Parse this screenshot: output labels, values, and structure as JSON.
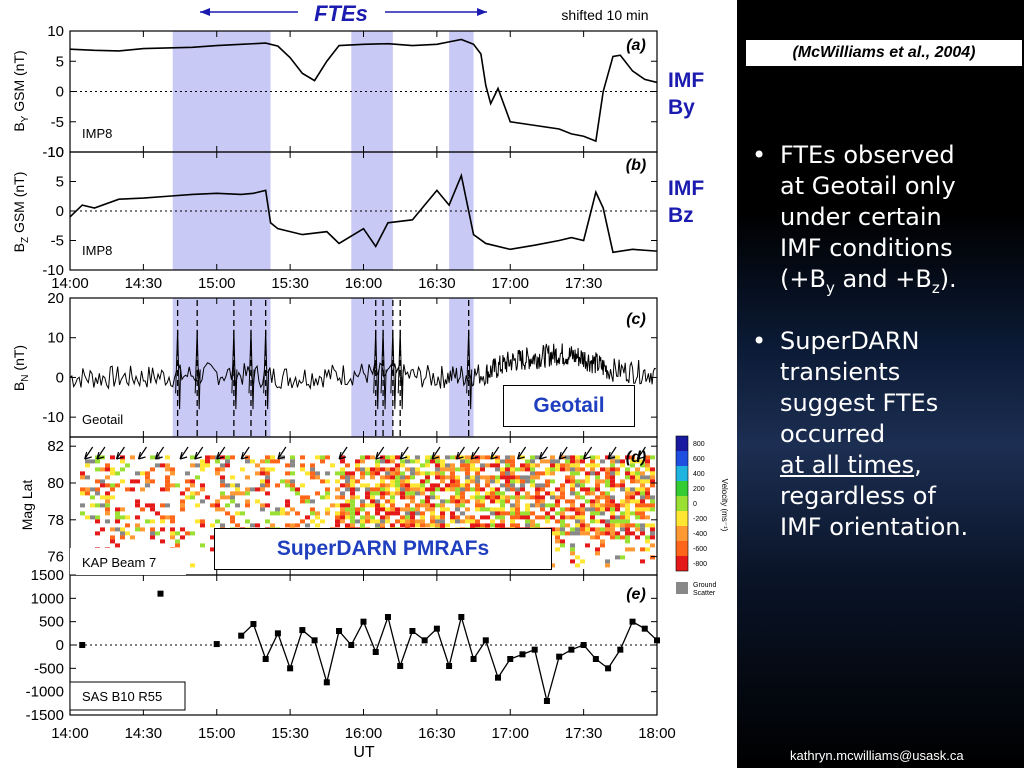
{
  "citation": "(McWilliams et al.,  2004)",
  "header": {
    "ftes": "FTEs",
    "shift_note": "shifted 10 min"
  },
  "side_labels": {
    "imf_by": [
      "IMF",
      "By"
    ],
    "imf_bz": [
      "IMF",
      "Bz"
    ]
  },
  "box_labels": {
    "geotail": "Geotail",
    "superdarn": "SuperDARN PMRAFs"
  },
  "bullets": [
    {
      "lines": [
        "FTEs observed",
        "at Geotail only",
        "under certain",
        "IMF conditions"
      ],
      "math": {
        "pre": "(+B",
        "sub1": "y",
        "mid": " and +B",
        "sub2": "z",
        "post": ")."
      }
    },
    {
      "lines": [
        "SuperDARN",
        "transients",
        "suggest FTEs",
        "occurred"
      ],
      "underline": "at all times",
      "after_underline": ",",
      "tail": [
        "regardless of",
        "IMF orientation."
      ]
    }
  ],
  "email": "kathryn.mcwilliams@usask.ca",
  "colors": {
    "highlight": "#c9c9f5",
    "label_blue": "#1b1bb0",
    "box_blue": "#1f3fbf",
    "trace": "#000000"
  },
  "chart_data": [
    {
      "type": "line",
      "panel": "(a)",
      "label": "IMP8",
      "ylabel": {
        "main": "B",
        "sub": "Y",
        "rest": " GSM (nT)"
      },
      "ylim": [
        -10,
        10
      ],
      "yticks": [
        10,
        5,
        0,
        -5,
        -10
      ],
      "zero_line": true,
      "x": [
        "14:00",
        "14:10",
        "14:20",
        "14:30",
        "14:40",
        "14:50",
        "15:00",
        "15:10",
        "15:20",
        "15:25",
        "15:30",
        "15:35",
        "15:40",
        "15:45",
        "15:50",
        "16:00",
        "16:10",
        "16:20",
        "16:30",
        "16:35",
        "16:40",
        "16:45",
        "16:48",
        "16:50",
        "16:52",
        "16:55",
        "17:00",
        "17:10",
        "17:20",
        "17:25",
        "17:30",
        "17:35",
        "17:38",
        "17:42",
        "17:45",
        "17:50",
        "17:55",
        "18:00"
      ],
      "y": [
        7.0,
        6.8,
        6.7,
        7.1,
        7.2,
        7.3,
        7.6,
        7.8,
        8.0,
        7.5,
        5.6,
        3.0,
        1.8,
        5.0,
        7.6,
        7.8,
        7.9,
        7.6,
        7.8,
        8.2,
        8.6,
        7.8,
        6.2,
        1.0,
        -2.0,
        0.5,
        -5.0,
        -5.6,
        -6.2,
        -7.0,
        -7.4,
        -8.2,
        0.0,
        5.8,
        6.0,
        3.4,
        2.0,
        1.5
      ],
      "xticks": [
        "14:00",
        "14:30",
        "15:00",
        "15:30",
        "16:00",
        "16:30",
        "17:00",
        "17:30"
      ]
    },
    {
      "type": "line",
      "panel": "(b)",
      "label": "IMP8",
      "ylabel": {
        "main": "B",
        "sub": "Z",
        "rest": " GSM (nT)"
      },
      "ylim": [
        -10,
        10
      ],
      "yticks": [
        10,
        5,
        0,
        -5,
        -10
      ],
      "zero_line": true,
      "x": [
        "14:00",
        "14:05",
        "14:10",
        "14:20",
        "14:30",
        "14:40",
        "14:50",
        "15:00",
        "15:10",
        "15:15",
        "15:20",
        "15:22",
        "15:25",
        "15:35",
        "15:45",
        "15:50",
        "16:00",
        "16:05",
        "16:10",
        "16:20",
        "16:30",
        "16:35",
        "16:40",
        "16:45",
        "16:50",
        "17:00",
        "17:10",
        "17:20",
        "17:25",
        "17:30",
        "17:35",
        "17:38",
        "17:42",
        "17:50",
        "18:00"
      ],
      "y": [
        -1.0,
        1.0,
        0.5,
        2.0,
        2.2,
        2.5,
        2.8,
        3.0,
        2.8,
        3.0,
        3.5,
        -2.0,
        -3.0,
        -4.0,
        -3.5,
        -5.5,
        -3.0,
        -6.0,
        -2.0,
        -1.5,
        3.5,
        1.0,
        6.0,
        -4.0,
        -5.5,
        -6.5,
        -5.8,
        -5.0,
        -4.5,
        -5.0,
        3.2,
        0.5,
        -7.0,
        -6.5,
        -6.8
      ],
      "xticks": [
        "14:00",
        "14:30",
        "15:00",
        "15:30",
        "16:00",
        "16:30",
        "17:00",
        "17:30"
      ]
    },
    {
      "type": "line",
      "panel": "(c)",
      "label": "Geotail",
      "ylabel": {
        "main": "B",
        "sub": "N",
        "rest": " (nT)"
      },
      "ylim": [
        -15,
        20
      ],
      "yticks": [
        20,
        10,
        0,
        -10
      ],
      "x": [
        "14:00",
        "14:30",
        "15:00",
        "15:30",
        "16:00",
        "16:30",
        "16:50",
        "17:00",
        "17:10",
        "17:20",
        "17:30",
        "17:40",
        "18:00"
      ],
      "y": [
        0,
        0,
        1,
        0,
        1,
        0,
        1,
        4,
        5,
        6,
        5,
        2,
        1
      ]
    },
    {
      "type": "heatmap",
      "panel": "(d)",
      "label": "KAP Beam 7",
      "ylabel": "Mag Lat",
      "ylim": [
        75,
        82.5
      ],
      "yticks": [
        82,
        80,
        78,
        76
      ],
      "colorbar": {
        "title": "Velocity (ms⁻¹)",
        "ticks": [
          "800",
          "600",
          "400",
          "200",
          "0",
          "-200",
          "-400",
          "-600",
          "-800"
        ],
        "colors": [
          "#1a1aa0",
          "#1f4fe0",
          "#1fb3e0",
          "#33cc33",
          "#99e033",
          "#ffe633",
          "#ff9933",
          "#ff6619",
          "#e61919"
        ],
        "ground_label": [
          "Ground",
          "Scatter"
        ],
        "ground_color": "#888888"
      }
    },
    {
      "type": "scatter",
      "panel": "(e)",
      "label": "SAS B10 R55",
      "ylim": [
        -1500,
        1500
      ],
      "yticks": [
        "1500",
        "1000",
        "500",
        "0",
        "-500",
        "-1000",
        "-1500"
      ],
      "zero_line": true,
      "x": [
        "14:05",
        "14:37",
        "15:00",
        "15:10",
        "15:15",
        "15:20",
        "15:25",
        "15:30",
        "15:35",
        "15:40",
        "15:45",
        "15:50",
        "15:55",
        "16:00",
        "16:05",
        "16:10",
        "16:15",
        "16:20",
        "16:25",
        "16:30",
        "16:35",
        "16:40",
        "16:45",
        "16:50",
        "16:55",
        "17:00",
        "17:05",
        "17:10",
        "17:15",
        "17:20",
        "17:25",
        "17:30",
        "17:35",
        "17:40",
        "17:45",
        "17:50",
        "17:55",
        "18:00"
      ],
      "y": [
        0,
        1100,
        20,
        200,
        450,
        -300,
        250,
        -500,
        320,
        100,
        -800,
        300,
        0,
        500,
        -150,
        600,
        -450,
        300,
        100,
        350,
        -450,
        600,
        -300,
        100,
        -700,
        -300,
        -200,
        -100,
        -1200,
        -250,
        -100,
        0,
        -300,
        -500,
        -100,
        500,
        350,
        100
      ],
      "xticks": [
        "14:00",
        "14:30",
        "15:00",
        "15:30",
        "16:00",
        "16:30",
        "17:00",
        "17:30",
        "18:00"
      ],
      "xlabel": "UT"
    }
  ],
  "highlights_ut": [
    [
      "14:42",
      "15:22"
    ],
    [
      "15:55",
      "16:12"
    ],
    [
      "16:35",
      "16:45"
    ]
  ],
  "dashed_ut": [
    "14:44",
    "14:52",
    "15:07",
    "15:14",
    "15:20",
    "16:05",
    "16:08",
    "16:12",
    "16:15",
    "16:43"
  ]
}
